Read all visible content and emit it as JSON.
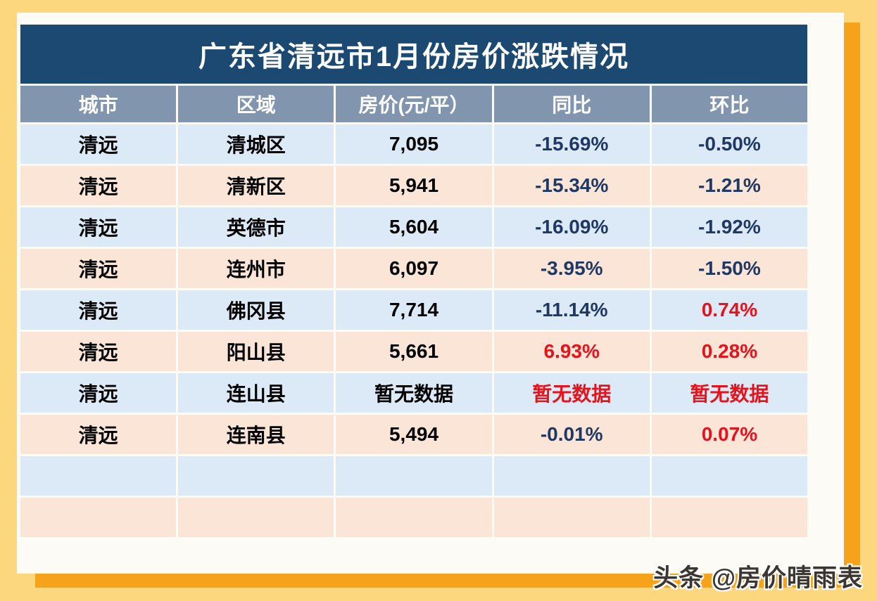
{
  "page": {
    "title": "广东省清远市1月份房价涨跌情况",
    "watermark": "头条 @房价晴雨表"
  },
  "colors": {
    "background_yellow": "#FCD77D",
    "accent_orange": "#F6A21B",
    "card_white": "#FDFBF6",
    "title_navy_bg": "#1C4971",
    "header_bluegray_bg": "#8295AF",
    "row_blue": "#DCE9F6",
    "row_peach": "#FBE5D7",
    "text_navy": "#1F3864",
    "text_red": "#E6131C",
    "text_black": "#000000"
  },
  "table": {
    "columns": [
      "城市",
      "区域",
      "房价(元/平）",
      "同比",
      "环比"
    ],
    "rows": [
      {
        "city": "清远",
        "district": "清城区",
        "price": "7,095",
        "price_color": "black",
        "yoy": "-15.69%",
        "yoy_color": "navy",
        "mom": "-0.50%",
        "mom_color": "navy"
      },
      {
        "city": "清远",
        "district": "清新区",
        "price": "5,941",
        "price_color": "black",
        "yoy": "-15.34%",
        "yoy_color": "navy",
        "mom": "-1.21%",
        "mom_color": "navy"
      },
      {
        "city": "清远",
        "district": "英德市",
        "price": "5,604",
        "price_color": "black",
        "yoy": "-16.09%",
        "yoy_color": "navy",
        "mom": "-1.92%",
        "mom_color": "navy"
      },
      {
        "city": "清远",
        "district": "连州市",
        "price": "6,097",
        "price_color": "black",
        "yoy": "-3.95%",
        "yoy_color": "navy",
        "mom": "-1.50%",
        "mom_color": "navy"
      },
      {
        "city": "清远",
        "district": "佛冈县",
        "price": "7,714",
        "price_color": "black",
        "yoy": "-11.14%",
        "yoy_color": "navy",
        "mom": "0.74%",
        "mom_color": "red"
      },
      {
        "city": "清远",
        "district": "阳山县",
        "price": "5,661",
        "price_color": "black",
        "yoy": "6.93%",
        "yoy_color": "red",
        "mom": "0.28%",
        "mom_color": "red"
      },
      {
        "city": "清远",
        "district": "连山县",
        "price": "暂无数据",
        "price_color": "black",
        "yoy": "暂无数据",
        "yoy_color": "red",
        "mom": "暂无数据",
        "mom_color": "red"
      },
      {
        "city": "清远",
        "district": "连南县",
        "price": "5,494",
        "price_color": "black",
        "yoy": "-0.01%",
        "yoy_color": "navy",
        "mom": "0.07%",
        "mom_color": "red"
      }
    ]
  },
  "chart_data": {
    "type": "table",
    "title": "广东省清远市1月份房价涨跌情况",
    "columns": [
      "城市",
      "区域",
      "房价(元/平）",
      "同比",
      "环比"
    ],
    "rows": [
      [
        "清远",
        "清城区",
        "7,095",
        "-15.69%",
        "-0.50%"
      ],
      [
        "清远",
        "清新区",
        "5,941",
        "-15.34%",
        "-1.21%"
      ],
      [
        "清远",
        "英德市",
        "5,604",
        "-16.09%",
        "-1.92%"
      ],
      [
        "清远",
        "连州市",
        "6,097",
        "-3.95%",
        "-1.50%"
      ],
      [
        "清远",
        "佛冈县",
        "7,714",
        "-11.14%",
        "0.74%"
      ],
      [
        "清远",
        "阳山县",
        "5,661",
        "6.93%",
        "0.28%"
      ],
      [
        "清远",
        "连山县",
        "暂无数据",
        "暂无数据",
        "暂无数据"
      ],
      [
        "清远",
        "连南县",
        "5,494",
        "-0.01%",
        "0.07%"
      ]
    ],
    "notes": "prices in yuan per square meter; 同比 = year-over-year change; 环比 = month-over-month change; red = increase/no-data flag, navy = decrease; two trailing empty striped rows"
  }
}
